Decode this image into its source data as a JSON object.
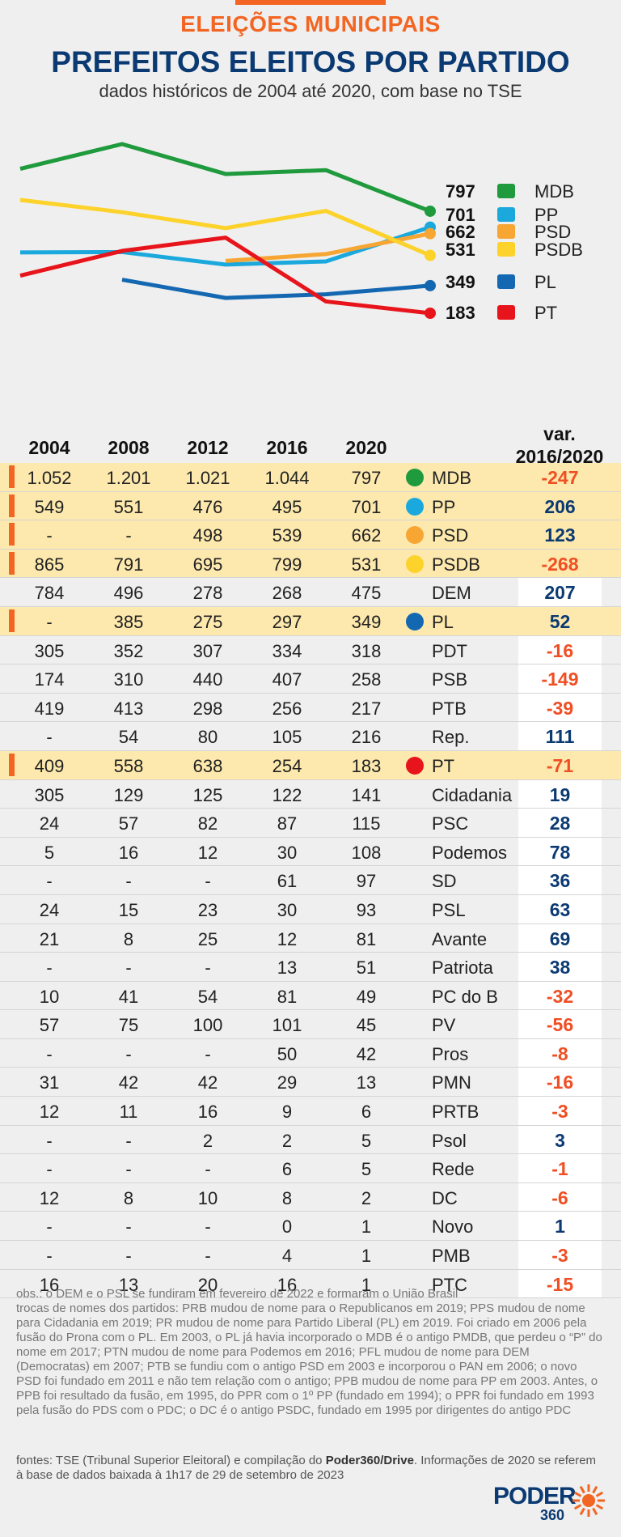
{
  "header": {
    "kicker": "ELEIÇÕES MUNICIPAIS",
    "title": "PREFEITOS ELEITOS POR PARTIDO",
    "subtitle": "dados históricos de 2004 até 2020, com base no TSE"
  },
  "chart_data": {
    "type": "line",
    "x": [
      "2004",
      "2008",
      "2012",
      "2016",
      "2020"
    ],
    "series": [
      {
        "name": "MDB",
        "label": "797",
        "color": "#1f9a3d",
        "values": [
          1052,
          1201,
          1021,
          1044,
          797
        ]
      },
      {
        "name": "PP",
        "label": "701",
        "color": "#1ba8dd",
        "values": [
          549,
          551,
          476,
          495,
          701
        ]
      },
      {
        "name": "PSD",
        "label": "662",
        "color": "#f7a533",
        "values": [
          null,
          null,
          498,
          539,
          662
        ]
      },
      {
        "name": "PSDB",
        "label": "531",
        "color": "#fcd22b",
        "values": [
          865,
          791,
          695,
          799,
          531
        ]
      },
      {
        "name": "PL",
        "label": "349",
        "color": "#1468b2",
        "values": [
          null,
          385,
          275,
          297,
          349
        ]
      },
      {
        "name": "PT",
        "label": "183",
        "color": "#e8141b",
        "values": [
          409,
          558,
          638,
          254,
          183
        ]
      }
    ]
  },
  "table": {
    "headers": [
      "2004",
      "2008",
      "2012",
      "2016",
      "2020"
    ],
    "var_header_line1": "var.",
    "var_header_line2": "2016/2020",
    "rows": [
      {
        "y2004": "1.052",
        "y2008": "1.201",
        "y2012": "1.021",
        "y2016": "1.044",
        "y2020": "797",
        "party": "MDB",
        "var": "-247",
        "highlight": true,
        "dot": "#1f9a3d"
      },
      {
        "y2004": "549",
        "y2008": "551",
        "y2012": "476",
        "y2016": "495",
        "y2020": "701",
        "party": "PP",
        "var": "206",
        "highlight": true,
        "dot": "#1ba8dd"
      },
      {
        "y2004": "-",
        "y2008": "-",
        "y2012": "498",
        "y2016": "539",
        "y2020": "662",
        "party": "PSD",
        "var": "123",
        "highlight": true,
        "dot": "#f7a533"
      },
      {
        "y2004": "865",
        "y2008": "791",
        "y2012": "695",
        "y2016": "799",
        "y2020": "531",
        "party": "PSDB",
        "var": "-268",
        "highlight": true,
        "dot": "#fcd22b"
      },
      {
        "y2004": "784",
        "y2008": "496",
        "y2012": "278",
        "y2016": "268",
        "y2020": "475",
        "party": "DEM",
        "var": "207",
        "highlight": false,
        "dot": ""
      },
      {
        "y2004": "-",
        "y2008": "385",
        "y2012": "275",
        "y2016": "297",
        "y2020": "349",
        "party": "PL",
        "var": "52",
        "highlight": true,
        "dot": "#1468b2"
      },
      {
        "y2004": "305",
        "y2008": "352",
        "y2012": "307",
        "y2016": "334",
        "y2020": "318",
        "party": "PDT",
        "var": "-16",
        "highlight": false,
        "dot": ""
      },
      {
        "y2004": "174",
        "y2008": "310",
        "y2012": "440",
        "y2016": "407",
        "y2020": "258",
        "party": "PSB",
        "var": "-149",
        "highlight": false,
        "dot": ""
      },
      {
        "y2004": "419",
        "y2008": "413",
        "y2012": "298",
        "y2016": "256",
        "y2020": "217",
        "party": "PTB",
        "var": "-39",
        "highlight": false,
        "dot": ""
      },
      {
        "y2004": "-",
        "y2008": "54",
        "y2012": "80",
        "y2016": "105",
        "y2020": "216",
        "party": "Rep.",
        "var": "111",
        "highlight": false,
        "dot": ""
      },
      {
        "y2004": "409",
        "y2008": "558",
        "y2012": "638",
        "y2016": "254",
        "y2020": "183",
        "party": "PT",
        "var": "-71",
        "highlight": true,
        "dot": "#e8141b"
      },
      {
        "y2004": "305",
        "y2008": "129",
        "y2012": "125",
        "y2016": "122",
        "y2020": "141",
        "party": "Cidadania",
        "var": "19",
        "highlight": false,
        "dot": ""
      },
      {
        "y2004": "24",
        "y2008": "57",
        "y2012": "82",
        "y2016": "87",
        "y2020": "115",
        "party": "PSC",
        "var": "28",
        "highlight": false,
        "dot": ""
      },
      {
        "y2004": "5",
        "y2008": "16",
        "y2012": "12",
        "y2016": "30",
        "y2020": "108",
        "party": "Podemos",
        "var": "78",
        "highlight": false,
        "dot": ""
      },
      {
        "y2004": "-",
        "y2008": "-",
        "y2012": "-",
        "y2016": "61",
        "y2020": "97",
        "party": "SD",
        "var": "36",
        "highlight": false,
        "dot": ""
      },
      {
        "y2004": "24",
        "y2008": "15",
        "y2012": "23",
        "y2016": "30",
        "y2020": "93",
        "party": "PSL",
        "var": "63",
        "highlight": false,
        "dot": ""
      },
      {
        "y2004": "21",
        "y2008": "8",
        "y2012": "25",
        "y2016": "12",
        "y2020": "81",
        "party": "Avante",
        "var": "69",
        "highlight": false,
        "dot": ""
      },
      {
        "y2004": "-",
        "y2008": "-",
        "y2012": "-",
        "y2016": "13",
        "y2020": "51",
        "party": "Patriota",
        "var": "38",
        "highlight": false,
        "dot": ""
      },
      {
        "y2004": "10",
        "y2008": "41",
        "y2012": "54",
        "y2016": "81",
        "y2020": "49",
        "party": "PC do B",
        "var": "-32",
        "highlight": false,
        "dot": ""
      },
      {
        "y2004": "57",
        "y2008": "75",
        "y2012": "100",
        "y2016": "101",
        "y2020": "45",
        "party": "PV",
        "var": "-56",
        "highlight": false,
        "dot": ""
      },
      {
        "y2004": "-",
        "y2008": "-",
        "y2012": "-",
        "y2016": "50",
        "y2020": "42",
        "party": "Pros",
        "var": "-8",
        "highlight": false,
        "dot": ""
      },
      {
        "y2004": "31",
        "y2008": "42",
        "y2012": "42",
        "y2016": "29",
        "y2020": "13",
        "party": "PMN",
        "var": "-16",
        "highlight": false,
        "dot": ""
      },
      {
        "y2004": "12",
        "y2008": "11",
        "y2012": "16",
        "y2016": "9",
        "y2020": "6",
        "party": "PRTB",
        "var": "-3",
        "highlight": false,
        "dot": ""
      },
      {
        "y2004": "-",
        "y2008": "-",
        "y2012": "2",
        "y2016": "2",
        "y2020": "5",
        "party": "Psol",
        "var": "3",
        "highlight": false,
        "dot": ""
      },
      {
        "y2004": "-",
        "y2008": "-",
        "y2012": "-",
        "y2016": "6",
        "y2020": "5",
        "party": "Rede",
        "var": "-1",
        "highlight": false,
        "dot": ""
      },
      {
        "y2004": "12",
        "y2008": "8",
        "y2012": "10",
        "y2016": "8",
        "y2020": "2",
        "party": "DC",
        "var": "-6",
        "highlight": false,
        "dot": ""
      },
      {
        "y2004": "-",
        "y2008": "-",
        "y2012": "-",
        "y2016": "0",
        "y2020": "1",
        "party": "Novo",
        "var": "1",
        "highlight": false,
        "dot": ""
      },
      {
        "y2004": "-",
        "y2008": "-",
        "y2012": "-",
        "y2016": "4",
        "y2020": "1",
        "party": "PMB",
        "var": "-3",
        "highlight": false,
        "dot": ""
      },
      {
        "y2004": "16",
        "y2008": "13",
        "y2012": "20",
        "y2016": "16",
        "y2020": "1",
        "party": "PTC",
        "var": "-15",
        "highlight": false,
        "dot": ""
      }
    ]
  },
  "notes": {
    "obs": "obs.: o DEM e o PSL se fundiram em fevereiro de 2022 e formaram o União Brasil",
    "renames": "trocas de nomes dos partidos: PRB mudou de nome para o Republicanos em 2019; PPS mudou de nome para Cidadania em 2019; PR mudou de nome para Partido Liberal (PL) em 2019. Foi criado em 2006 pela fusão do Prona com o PL. Em 2003, o PL já havia incorporado o MDB é o antigo PMDB, que perdeu o “P” do nome em 2017; PTN mudou de nome para Podemos em 2016; PFL mudou de nome para DEM (Democratas) em 2007; PTB se fundiu com o antigo PSD em 2003 e incorporou o PAN em 2006; o novo PSD foi fundado em 2011 e não tem relação com o antigo; PPB mudou de nome para PP em 2003. Antes, o PPB foi resultado da fusão, em 1995, do PPR com o 1º PP (fundado em 1994); o PPR foi fundado em 1993 pela fusão do PDS com o PDC; o DC é o antigo PSDC, fundado em 1995 por dirigentes do antigo PDC"
  },
  "sources": {
    "prefix": "fontes: TSE (Tribunal Superior Eleitoral) e compilação do ",
    "bold": "Poder360/Drive",
    "suffix": ". Informações de 2020 se referem à base de dados baixada à 1h17 de 29 de setembro de 2023"
  },
  "logo": {
    "main": "PODER",
    "sub": "360"
  }
}
